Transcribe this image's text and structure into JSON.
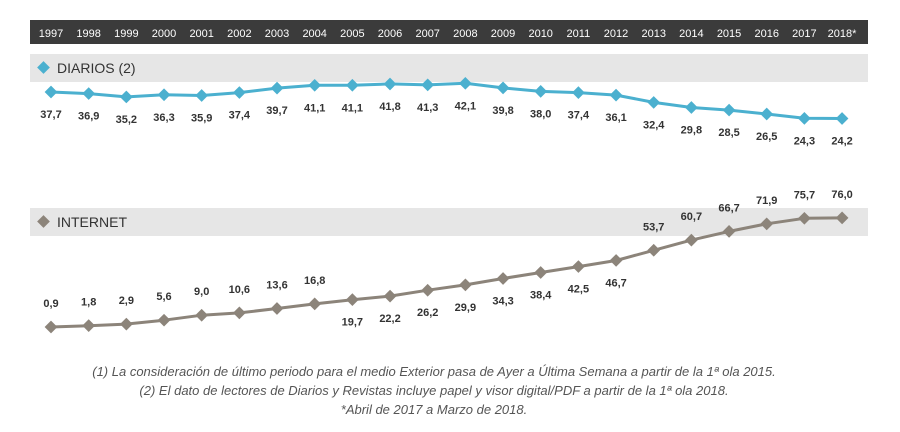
{
  "chart_data": {
    "type": "line",
    "categories": [
      "1997",
      "1998",
      "1999",
      "2000",
      "2001",
      "2002",
      "2003",
      "2004",
      "2005",
      "2006",
      "2007",
      "2008",
      "2009",
      "2010",
      "2011",
      "2012",
      "2013",
      "2014",
      "2015",
      "2016",
      "2017",
      "2018*"
    ],
    "value_labels": {
      "diarios": [
        "37,7",
        "36,9",
        "35,2",
        "36,3",
        "35,9",
        "37,4",
        "39,7",
        "41,1",
        "41,1",
        "41,8",
        "41,3",
        "42,1",
        "39,8",
        "38,0",
        "37,4",
        "36,1",
        "32,4",
        "29,8",
        "28,5",
        "26,5",
        "24,3",
        "24,2"
      ],
      "internet": [
        "0,9",
        "1,8",
        "2,9",
        "5,6",
        "9,0",
        "10,6",
        "13,6",
        "16,8",
        "19,7",
        "22,2",
        "26,2",
        "29,9",
        "34,3",
        "38,4",
        "42,5",
        "46,7",
        "53,7",
        "60,7",
        "66,7",
        "71,9",
        "75,7",
        "76,0"
      ]
    },
    "series": [
      {
        "name": "DIARIOS (2)",
        "color": "#4bb0cf",
        "values": [
          37.7,
          36.9,
          35.2,
          36.3,
          35.9,
          37.4,
          39.7,
          41.1,
          41.1,
          41.8,
          41.3,
          42.1,
          39.8,
          38.0,
          37.4,
          36.1,
          32.4,
          29.8,
          28.5,
          26.5,
          24.3,
          24.2
        ]
      },
      {
        "name": "INTERNET",
        "color": "#8c847a",
        "values": [
          0.9,
          1.8,
          2.9,
          5.6,
          9.0,
          10.6,
          13.6,
          16.8,
          19.7,
          22.2,
          26.2,
          29.9,
          34.3,
          38.4,
          42.5,
          46.7,
          53.7,
          60.7,
          66.7,
          71.9,
          75.7,
          76.0
        ]
      }
    ],
    "legend_placement": "top-left of each panel",
    "grid": false
  },
  "colors": {
    "year_bar_bg": "#3b3b3b",
    "year_bar_text": "#ffffff",
    "panel_header_bg": "#e6e6e6",
    "label_text": "#333333"
  },
  "footnotes": [
    "(1) La consideración de último periodo  para el medio Exterior pasa de Ayer a Última Semana a partir de la 1ª ola 2015.",
    "(2) El dato de lectores de Diarios y Revistas incluye papel y visor digital/PDF a partir de la 1ª ola 2018.",
    "*Abril de 2017 a Marzo de 2018."
  ]
}
